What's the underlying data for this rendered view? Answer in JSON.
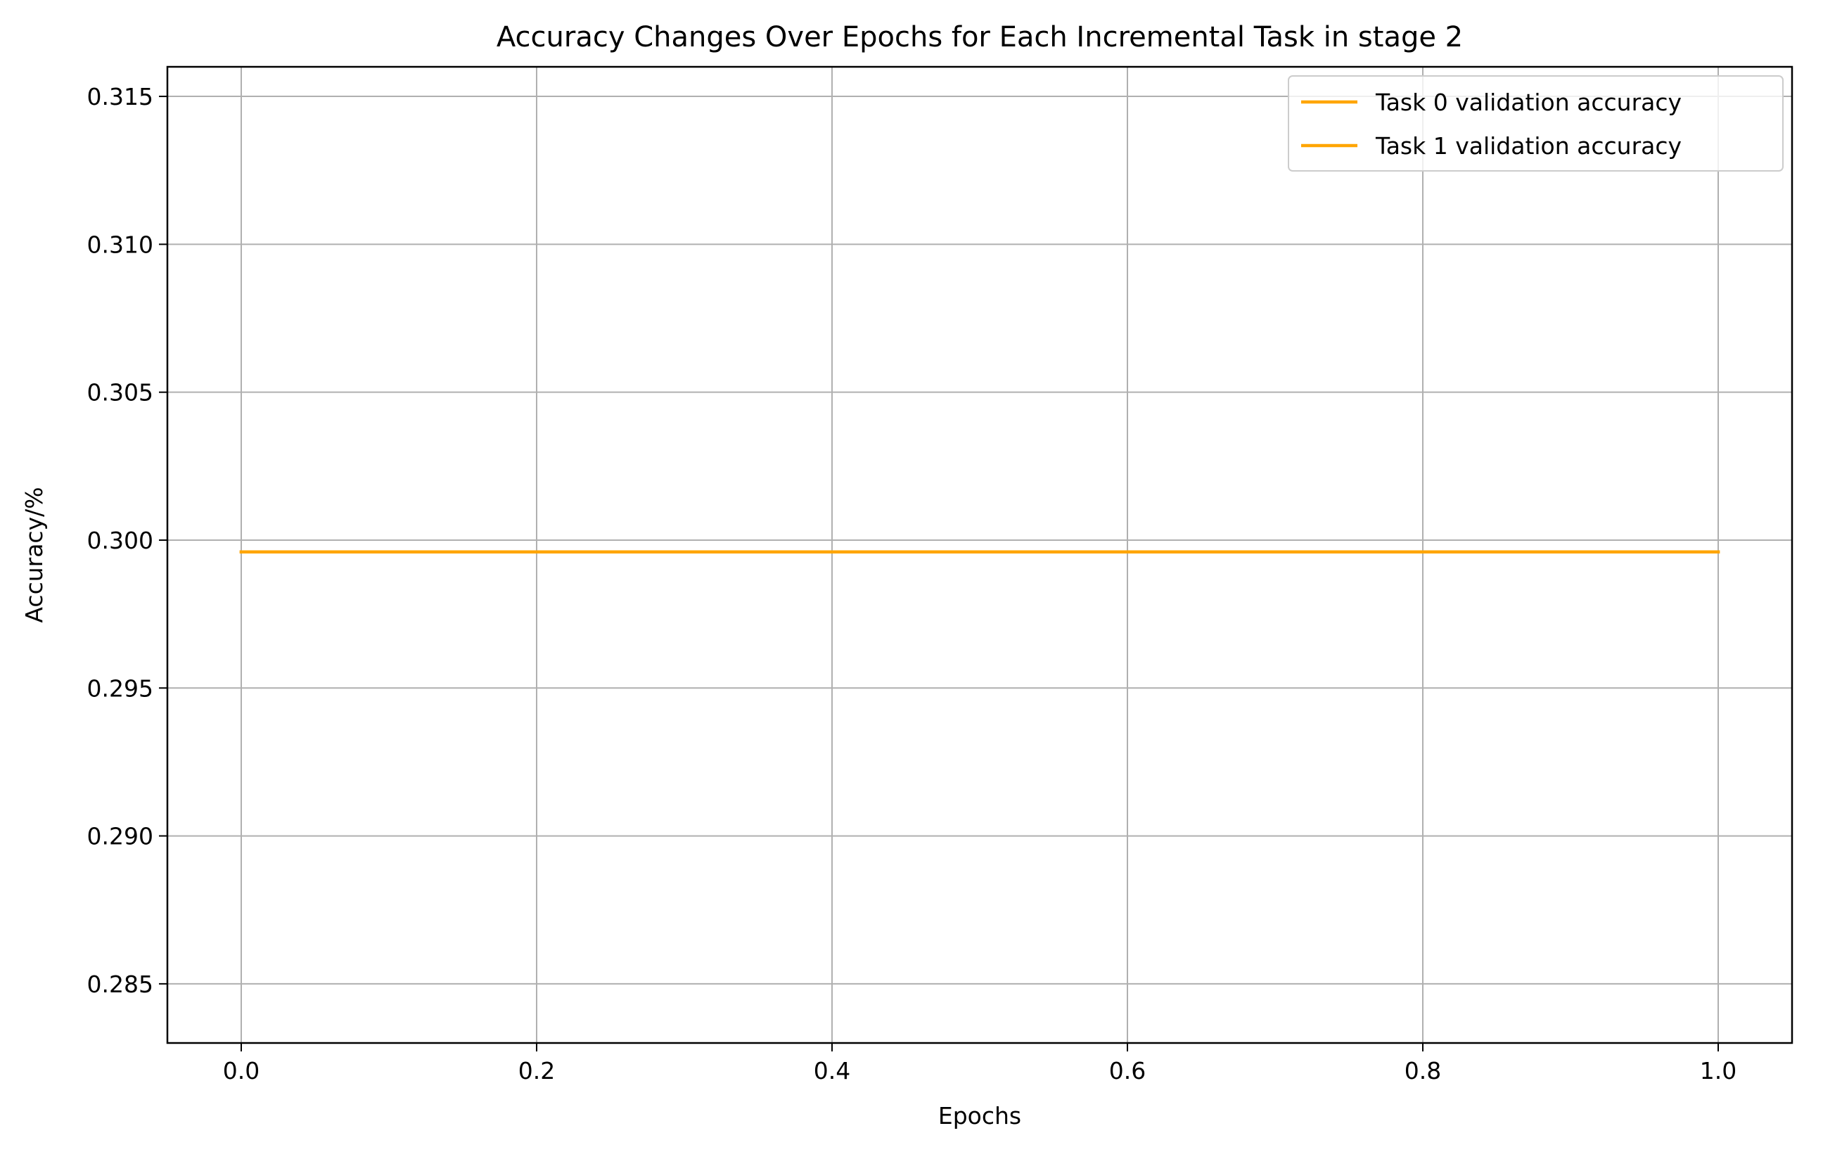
{
  "chart_data": {
    "type": "line",
    "title": "Accuracy Changes Over Epochs for Each Incremental Task in stage 2",
    "xlabel": "Epochs",
    "ylabel": "Accuracy/%",
    "xlim": [
      -0.05,
      1.05
    ],
    "ylim": [
      0.283,
      0.316
    ],
    "x_ticks": [
      0.0,
      0.2,
      0.4,
      0.6,
      0.8,
      1.0
    ],
    "x_tick_labels": [
      "0.0",
      "0.2",
      "0.4",
      "0.6",
      "0.8",
      "1.0"
    ],
    "y_ticks": [
      0.285,
      0.29,
      0.295,
      0.3,
      0.305,
      0.31,
      0.315
    ],
    "y_tick_labels": [
      "0.285",
      "0.290",
      "0.295",
      "0.300",
      "0.305",
      "0.310",
      "0.315"
    ],
    "grid": true,
    "legend_position": "top-right",
    "series": [
      {
        "name": "Task 0 validation accuracy",
        "color": "#ffa500",
        "x": [
          0.0,
          1.0
        ],
        "y": [
          0.2996,
          0.2996
        ]
      },
      {
        "name": "Task 1 validation accuracy",
        "color": "#ffa500",
        "x": [
          0.0,
          1.0
        ],
        "y": [
          0.2996,
          0.2996
        ]
      }
    ]
  }
}
